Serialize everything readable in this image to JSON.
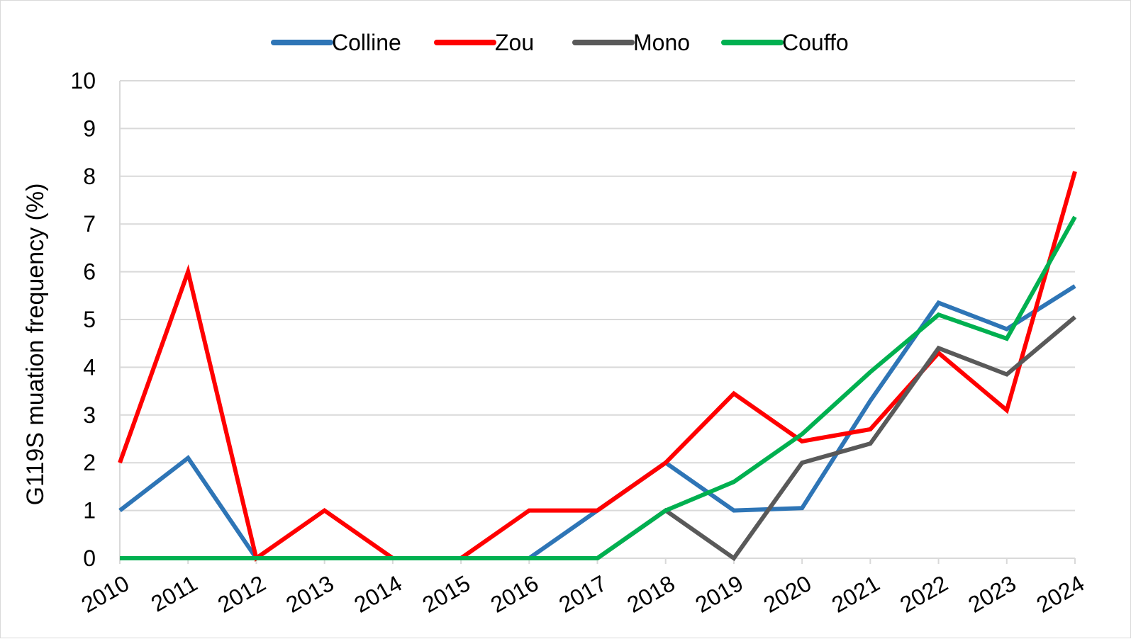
{
  "chart_data": {
    "type": "line",
    "title": "",
    "xlabel": "",
    "ylabel": "G119S muation frequency (%)",
    "ylim": [
      0,
      10
    ],
    "yticks": [
      "0",
      "1",
      "2",
      "3",
      "4",
      "5",
      "6",
      "7",
      "8",
      "9",
      "10"
    ],
    "grid": "horizontal",
    "legend_position": "top",
    "categories": [
      "2010",
      "2011",
      "2012",
      "2013",
      "2014",
      "2015",
      "2016",
      "2017",
      "2018",
      "2019",
      "2020",
      "2021",
      "2022",
      "2023",
      "2024"
    ],
    "series": [
      {
        "name": "Colline",
        "color": "#2e75b6",
        "values": [
          1,
          2.1,
          0,
          0,
          0,
          0,
          0,
          1,
          2,
          1,
          1.05,
          3.3,
          5.35,
          4.8,
          5.7
        ]
      },
      {
        "name": "Zou",
        "color": "#ff0000",
        "values": [
          2,
          6,
          0,
          1,
          0,
          0,
          1,
          1,
          2,
          3.45,
          2.45,
          2.7,
          4.3,
          3.1,
          8.1
        ]
      },
      {
        "name": "Mono",
        "color": "#595959",
        "values": [
          0,
          0,
          0,
          0,
          0,
          0,
          0,
          0,
          1,
          0,
          2,
          2.4,
          4.4,
          3.85,
          5.05
        ]
      },
      {
        "name": "Couffo",
        "color": "#00b050",
        "values": [
          0,
          0,
          0,
          0,
          0,
          0,
          0,
          0,
          1,
          1.6,
          2.6,
          3.9,
          5.1,
          4.6,
          7.15
        ]
      }
    ]
  }
}
